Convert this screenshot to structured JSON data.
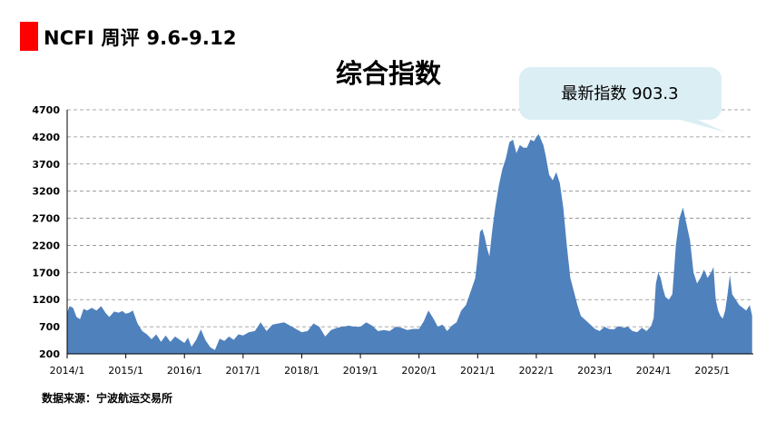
{
  "header": {
    "title": "NCFI 周评 9.6-9.12",
    "accent_color": "#ff0000"
  },
  "source": "数据来源：宁波航运交易所",
  "chart_data": {
    "type": "area",
    "title": "综合指数",
    "callout": "最新指数 903.3",
    "xlabel": "",
    "ylabel": "",
    "ylim": [
      200,
      4700
    ],
    "yticks": [
      200,
      700,
      1200,
      1700,
      2200,
      2700,
      3200,
      3700,
      4200,
      4700
    ],
    "xticks": [
      "2014/1",
      "2015/1",
      "2016/1",
      "2017/1",
      "2018/1",
      "2019/1",
      "2020/1",
      "2021/1",
      "2022/1",
      "2023/1",
      "2024/1",
      "2025/1"
    ],
    "grid": "horizontal-dashed",
    "fill_color": "#4f81bd",
    "callout_color": "#dbeef4",
    "series": [
      {
        "x": [
          2014.0,
          2014.04,
          2014.1,
          2014.16,
          2014.22,
          2014.28,
          2014.34,
          2014.42,
          2014.5,
          2014.58,
          2014.66,
          2014.72,
          2014.8,
          2014.88,
          2014.94,
          2015.0,
          2015.06,
          2015.12,
          2015.2,
          2015.28,
          2015.36,
          2015.44,
          2015.52,
          2015.6,
          2015.68,
          2015.76,
          2015.84,
          2015.92,
          2016.0,
          2016.06,
          2016.12,
          2016.2,
          2016.28,
          2016.36,
          2016.44,
          2016.52,
          2016.6,
          2016.68,
          2016.76,
          2016.84,
          2016.92,
          2017.0,
          2017.1,
          2017.2,
          2017.3,
          2017.4,
          2017.5,
          2017.6,
          2017.7,
          2017.8,
          2017.9,
          2018.0,
          2018.1,
          2018.2,
          2018.3,
          2018.4,
          2018.5,
          2018.6,
          2018.7,
          2018.8,
          2018.9,
          2019.0,
          2019.1,
          2019.2,
          2019.3,
          2019.4,
          2019.5,
          2019.6,
          2019.7,
          2019.8,
          2019.9,
          2020.0,
          2020.08,
          2020.16,
          2020.24,
          2020.32,
          2020.4,
          2020.48,
          2020.56,
          2020.64,
          2020.72,
          2020.8,
          2020.88,
          2020.96,
          2021.0,
          2021.04,
          2021.08,
          2021.12,
          2021.16,
          2021.2,
          2021.25,
          2021.3,
          2021.36,
          2021.42,
          2021.48,
          2021.54,
          2021.6,
          2021.66,
          2021.72,
          2021.78,
          2021.84,
          2021.9,
          2021.96,
          2022.0,
          2022.04,
          2022.08,
          2022.12,
          2022.16,
          2022.22,
          2022.28,
          2022.34,
          2022.4,
          2022.46,
          2022.52,
          2022.58,
          2022.64,
          2022.7,
          2022.76,
          2022.82,
          2022.88,
          2022.94,
          2023.0,
          2023.08,
          2023.16,
          2023.24,
          2023.32,
          2023.4,
          2023.48,
          2023.56,
          2023.64,
          2023.72,
          2023.8,
          2023.88,
          2023.96,
          2024.0,
          2024.04,
          2024.08,
          2024.12,
          2024.16,
          2024.2,
          2024.26,
          2024.32,
          2024.38,
          2024.44,
          2024.5,
          2024.56,
          2024.62,
          2024.68,
          2024.74,
          2024.8,
          2024.86,
          2024.92,
          2024.98,
          2025.02,
          2025.06,
          2025.1,
          2025.14,
          2025.18,
          2025.22,
          2025.26,
          2025.3,
          2025.34,
          2025.4,
          2025.46,
          2025.52,
          2025.58,
          2025.64,
          2025.68
        ],
        "y": [
          960,
          1080,
          1050,
          880,
          840,
          1030,
          1000,
          1050,
          1000,
          1080,
          950,
          880,
          980,
          960,
          990,
          940,
          960,
          1000,
          760,
          620,
          560,
          470,
          560,
          420,
          540,
          420,
          520,
          460,
          400,
          500,
          330,
          460,
          650,
          450,
          320,
          270,
          480,
          440,
          520,
          460,
          560,
          540,
          600,
          620,
          780,
          620,
          740,
          760,
          780,
          720,
          660,
          600,
          620,
          760,
          700,
          520,
          640,
          680,
          700,
          720,
          700,
          700,
          780,
          720,
          620,
          640,
          620,
          700,
          680,
          640,
          660,
          660,
          800,
          1000,
          860,
          700,
          740,
          620,
          720,
          780,
          1000,
          1100,
          1350,
          1600,
          2000,
          2450,
          2500,
          2350,
          2150,
          2000,
          2500,
          2900,
          3300,
          3600,
          3800,
          4100,
          4150,
          3900,
          4050,
          4000,
          4000,
          4150,
          4120,
          4200,
          4250,
          4150,
          4050,
          3850,
          3500,
          3400,
          3550,
          3350,
          2900,
          2200,
          1600,
          1350,
          1100,
          900,
          840,
          780,
          720,
          660,
          620,
          700,
          660,
          650,
          710,
          680,
          700,
          620,
          600,
          680,
          620,
          720,
          860,
          1500,
          1700,
          1600,
          1400,
          1250,
          1200,
          1300,
          2200,
          2700,
          2900,
          2600,
          2300,
          1700,
          1500,
          1600,
          1750,
          1600,
          1700,
          1800,
          1200,
          1000,
          900,
          850,
          1000,
          1300,
          1650,
          1300,
          1200,
          1100,
          1050,
          1000,
          1100,
          903.3
        ]
      }
    ]
  }
}
